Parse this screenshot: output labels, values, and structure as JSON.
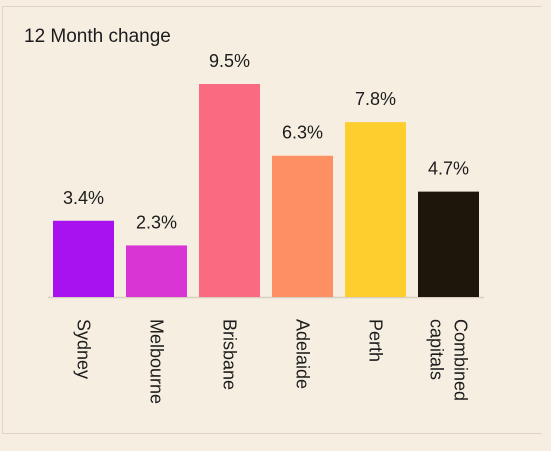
{
  "chart_data": {
    "type": "bar",
    "title": "12 Month change",
    "categories": [
      "Sydney",
      "Melbourne",
      "Brisbane",
      "Adelaide",
      "Perth",
      "Combined capitals"
    ],
    "values": [
      3.4,
      2.3,
      9.5,
      6.3,
      7.8,
      4.7
    ],
    "data_labels": [
      "3.4%",
      "2.3%",
      "9.5%",
      "6.3%",
      "7.8%",
      "4.7%"
    ],
    "colors": [
      "#a812ee",
      "#d935d4",
      "#fa6a81",
      "#fd8f63",
      "#fece2e",
      "#1e160b"
    ],
    "ylim": [
      0,
      9.5
    ],
    "grid": false,
    "legend": "none",
    "xlabel": "",
    "ylabel": ""
  },
  "colors": {
    "background": "#f6eee1",
    "baseline": "#d8cfc0",
    "text": "#1c1c1c"
  }
}
